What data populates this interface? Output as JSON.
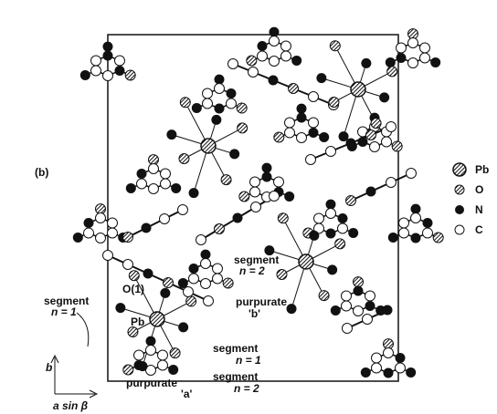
{
  "panel_label": "(b)",
  "legend": [
    {
      "label": "Pb"
    },
    {
      "label": "O"
    },
    {
      "label": "N"
    },
    {
      "label": "C"
    }
  ],
  "annotations": [
    {
      "lines": [
        "O(1)"
      ]
    },
    {
      "lines": [
        "segment",
        "n = 2"
      ]
    },
    {
      "lines": [
        "purpurate",
        "'b'"
      ]
    },
    {
      "lines": [
        "segment",
        "n = 1"
      ]
    },
    {
      "lines": [
        "Pb"
      ]
    },
    {
      "lines": [
        "segment",
        "n = 1"
      ]
    },
    {
      "lines": [
        "segment",
        "n = 2"
      ]
    },
    {
      "lines": [
        "purpurate",
        "'a'"
      ]
    }
  ],
  "axes": {
    "vertical": "b",
    "horizontal": "a sin β"
  }
}
